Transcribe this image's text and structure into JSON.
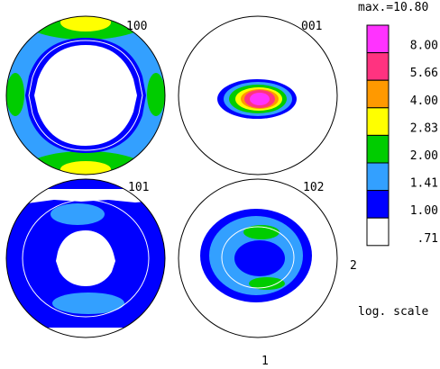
{
  "chart_data": {
    "type": "heatmap",
    "subtype": "pole-figure",
    "scale": "log",
    "max_label": "max.=10.80",
    "scale_label": "log. scale",
    "footer_label": "1",
    "side_label": "2",
    "legend": {
      "levels": [
        {
          "label": "8.00",
          "color": "#ff33ff"
        },
        {
          "label": "5.66",
          "color": "#ff3380"
        },
        {
          "label": "4.00",
          "color": "#ff9900"
        },
        {
          "label": "2.83",
          "color": "#ffff00"
        },
        {
          "label": "2.00",
          "color": "#00cc00"
        },
        {
          "label": "1.41",
          "color": "#33a0ff"
        },
        {
          "label": "1.00",
          "color": "#0000ff"
        },
        {
          "label": ".71",
          "color": "#ffffff"
        }
      ]
    },
    "panels": [
      {
        "label": "100"
      },
      {
        "label": "001"
      },
      {
        "label": "101"
      },
      {
        "label": "102"
      }
    ]
  }
}
